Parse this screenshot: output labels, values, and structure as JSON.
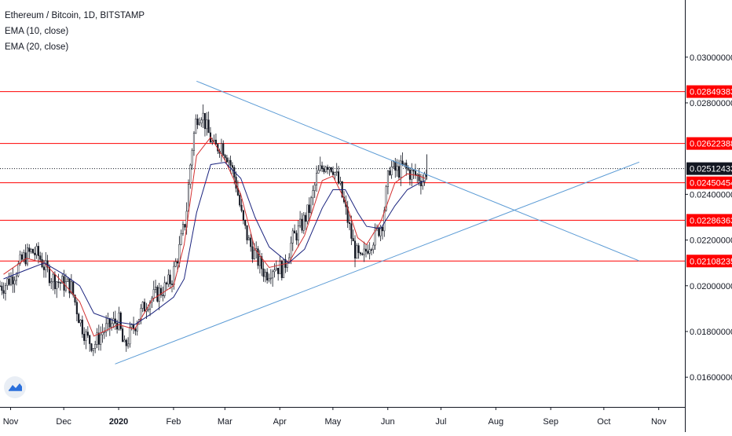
{
  "header": {
    "title": "Ethereum / Bitcoin, 1D, BITSTAMP",
    "indicators": [
      "EMA (10, close)",
      "EMA (20, close)"
    ]
  },
  "icons": {
    "logo": "tradingview-cloud-icon"
  },
  "colors": {
    "candle": "#131722",
    "ema_fast": "#d32f2f",
    "ema_slow": "#1a237e",
    "levels": "#ff0000",
    "trendlines": "#5b9bd5",
    "last_price_bg": "#131722",
    "level_label_bg": "#ff0000"
  },
  "chart_data": {
    "type": "candlestick",
    "title": "Ethereum / Bitcoin, 1D, BITSTAMP",
    "ylim": [
      0.0147,
      0.0325
    ],
    "x_ticks": [
      "Nov",
      "Dec",
      "2020",
      "Feb",
      "Mar",
      "Apr",
      "May",
      "Jun",
      "Jul",
      "Aug",
      "Sep",
      "Oct",
      "Nov"
    ],
    "y_ticks": [
      "0.01600000",
      "0.01800000",
      "0.02000000",
      "0.02200000",
      "0.02400000",
      "0.02800000",
      "0.03000000"
    ],
    "horizontal_levels": [
      "0.02849383",
      "0.02622388",
      "0.02450454",
      "0.02286363",
      "0.02108235"
    ],
    "last_price": "0.02512433",
    "series": [
      {
        "name": "EMA (10, close)",
        "points": [
          [
            "2019-10-28",
            0.0205
          ],
          [
            "2019-11-10",
            0.0212
          ],
          [
            "2019-11-20",
            0.021
          ],
          [
            "2019-12-01",
            0.0201
          ],
          [
            "2019-12-10",
            0.0193
          ],
          [
            "2019-12-18",
            0.0178
          ],
          [
            "2020-01-01",
            0.0183
          ],
          [
            "2020-01-10",
            0.0181
          ],
          [
            "2020-01-20",
            0.0194
          ],
          [
            "2020-02-01",
            0.02
          ],
          [
            "2020-02-07",
            0.0218
          ],
          [
            "2020-02-14",
            0.0257
          ],
          [
            "2020-02-22",
            0.0265
          ],
          [
            "2020-03-01",
            0.0255
          ],
          [
            "2020-03-10",
            0.024
          ],
          [
            "2020-03-18",
            0.0216
          ],
          [
            "2020-03-26",
            0.0208
          ],
          [
            "2020-04-06",
            0.021
          ],
          [
            "2020-04-15",
            0.0222
          ],
          [
            "2020-04-25",
            0.0246
          ],
          [
            "2020-05-01",
            0.0248
          ],
          [
            "2020-05-08",
            0.0237
          ],
          [
            "2020-05-15",
            0.0221
          ],
          [
            "2020-05-20",
            0.0218
          ],
          [
            "2020-05-28",
            0.0228
          ],
          [
            "2020-06-05",
            0.0245
          ],
          [
            "2020-06-12",
            0.0249
          ],
          [
            "2020-06-19",
            0.0248
          ],
          [
            "2020-06-22",
            0.0247
          ]
        ]
      },
      {
        "name": "EMA (20, close)",
        "points": [
          [
            "2019-10-28",
            0.0203
          ],
          [
            "2019-11-10",
            0.0207
          ],
          [
            "2019-11-20",
            0.021
          ],
          [
            "2019-12-01",
            0.0205
          ],
          [
            "2019-12-10",
            0.02
          ],
          [
            "2019-12-18",
            0.0188
          ],
          [
            "2020-01-01",
            0.0184
          ],
          [
            "2020-01-10",
            0.0183
          ],
          [
            "2020-01-20",
            0.0188
          ],
          [
            "2020-02-01",
            0.0195
          ],
          [
            "2020-02-07",
            0.0203
          ],
          [
            "2020-02-14",
            0.0232
          ],
          [
            "2020-02-22",
            0.0253
          ],
          [
            "2020-03-01",
            0.0254
          ],
          [
            "2020-03-10",
            0.0247
          ],
          [
            "2020-03-18",
            0.023
          ],
          [
            "2020-03-26",
            0.0217
          ],
          [
            "2020-04-06",
            0.021
          ],
          [
            "2020-04-15",
            0.0216
          ],
          [
            "2020-04-25",
            0.0234
          ],
          [
            "2020-05-01",
            0.0242
          ],
          [
            "2020-05-08",
            0.0242
          ],
          [
            "2020-05-15",
            0.0232
          ],
          [
            "2020-05-20",
            0.0226
          ],
          [
            "2020-05-28",
            0.0225
          ],
          [
            "2020-06-05",
            0.0235
          ],
          [
            "2020-06-12",
            0.0242
          ],
          [
            "2020-06-19",
            0.0245
          ],
          [
            "2020-06-22",
            0.0246
          ]
        ]
      }
    ],
    "candle_closes": [
      [
        "2019-10-28",
        0.02
      ],
      [
        "2019-11-03",
        0.0205
      ],
      [
        "2019-11-08",
        0.0212
      ],
      [
        "2019-11-13",
        0.0215
      ],
      [
        "2019-11-17",
        0.0213
      ],
      [
        "2019-11-21",
        0.0207
      ],
      [
        "2019-11-25",
        0.0203
      ],
      [
        "2019-11-30",
        0.0201
      ],
      [
        "2019-12-05",
        0.02
      ],
      [
        "2019-12-10",
        0.0185
      ],
      [
        "2019-12-14",
        0.0177
      ],
      [
        "2019-12-18",
        0.0174
      ],
      [
        "2019-12-23",
        0.018
      ],
      [
        "2019-12-28",
        0.0183
      ],
      [
        "2020-01-01",
        0.0185
      ],
      [
        "2020-01-04",
        0.0172
      ],
      [
        "2020-01-07",
        0.0178
      ],
      [
        "2020-01-12",
        0.0186
      ],
      [
        "2020-01-17",
        0.0193
      ],
      [
        "2020-01-22",
        0.0196
      ],
      [
        "2020-01-27",
        0.0199
      ],
      [
        "2020-01-31",
        0.0203
      ],
      [
        "2020-02-04",
        0.0215
      ],
      [
        "2020-02-08",
        0.023
      ],
      [
        "2020-02-11",
        0.0258
      ],
      [
        "2020-02-14",
        0.0274
      ],
      [
        "2020-02-17",
        0.0276
      ],
      [
        "2020-02-20",
        0.0268
      ],
      [
        "2020-02-24",
        0.026
      ],
      [
        "2020-02-28",
        0.0262
      ],
      [
        "2020-03-03",
        0.0256
      ],
      [
        "2020-03-07",
        0.0246
      ],
      [
        "2020-03-11",
        0.0228
      ],
      [
        "2020-03-15",
        0.0218
      ],
      [
        "2020-03-19",
        0.0212
      ],
      [
        "2020-03-24",
        0.0205
      ],
      [
        "2020-03-29",
        0.0209
      ],
      [
        "2020-04-03",
        0.0207
      ],
      [
        "2020-04-08",
        0.022
      ],
      [
        "2020-04-13",
        0.0226
      ],
      [
        "2020-04-18",
        0.0234
      ],
      [
        "2020-04-22",
        0.0248
      ],
      [
        "2020-04-27",
        0.0254
      ],
      [
        "2020-05-01",
        0.0252
      ],
      [
        "2020-05-05",
        0.0243
      ],
      [
        "2020-05-09",
        0.023
      ],
      [
        "2020-05-13",
        0.0216
      ],
      [
        "2020-05-17",
        0.021
      ],
      [
        "2020-05-21",
        0.0218
      ],
      [
        "2020-05-25",
        0.0222
      ],
      [
        "2020-05-29",
        0.0228
      ],
      [
        "2020-06-02",
        0.0252
      ],
      [
        "2020-06-06",
        0.025
      ],
      [
        "2020-06-10",
        0.0252
      ],
      [
        "2020-06-14",
        0.0249
      ],
      [
        "2020-06-18",
        0.0248
      ],
      [
        "2020-06-21",
        0.0246
      ],
      [
        "2020-06-23",
        0.0251
      ]
    ],
    "trendlines": [
      {
        "from": [
          "2020-02-14",
          0.02895
        ],
        "to": [
          "2020-10-21",
          0.02109
        ]
      },
      {
        "from": [
          "2019-12-30",
          0.01658
        ],
        "to": [
          "2020-10-21",
          0.02541
        ]
      }
    ]
  }
}
